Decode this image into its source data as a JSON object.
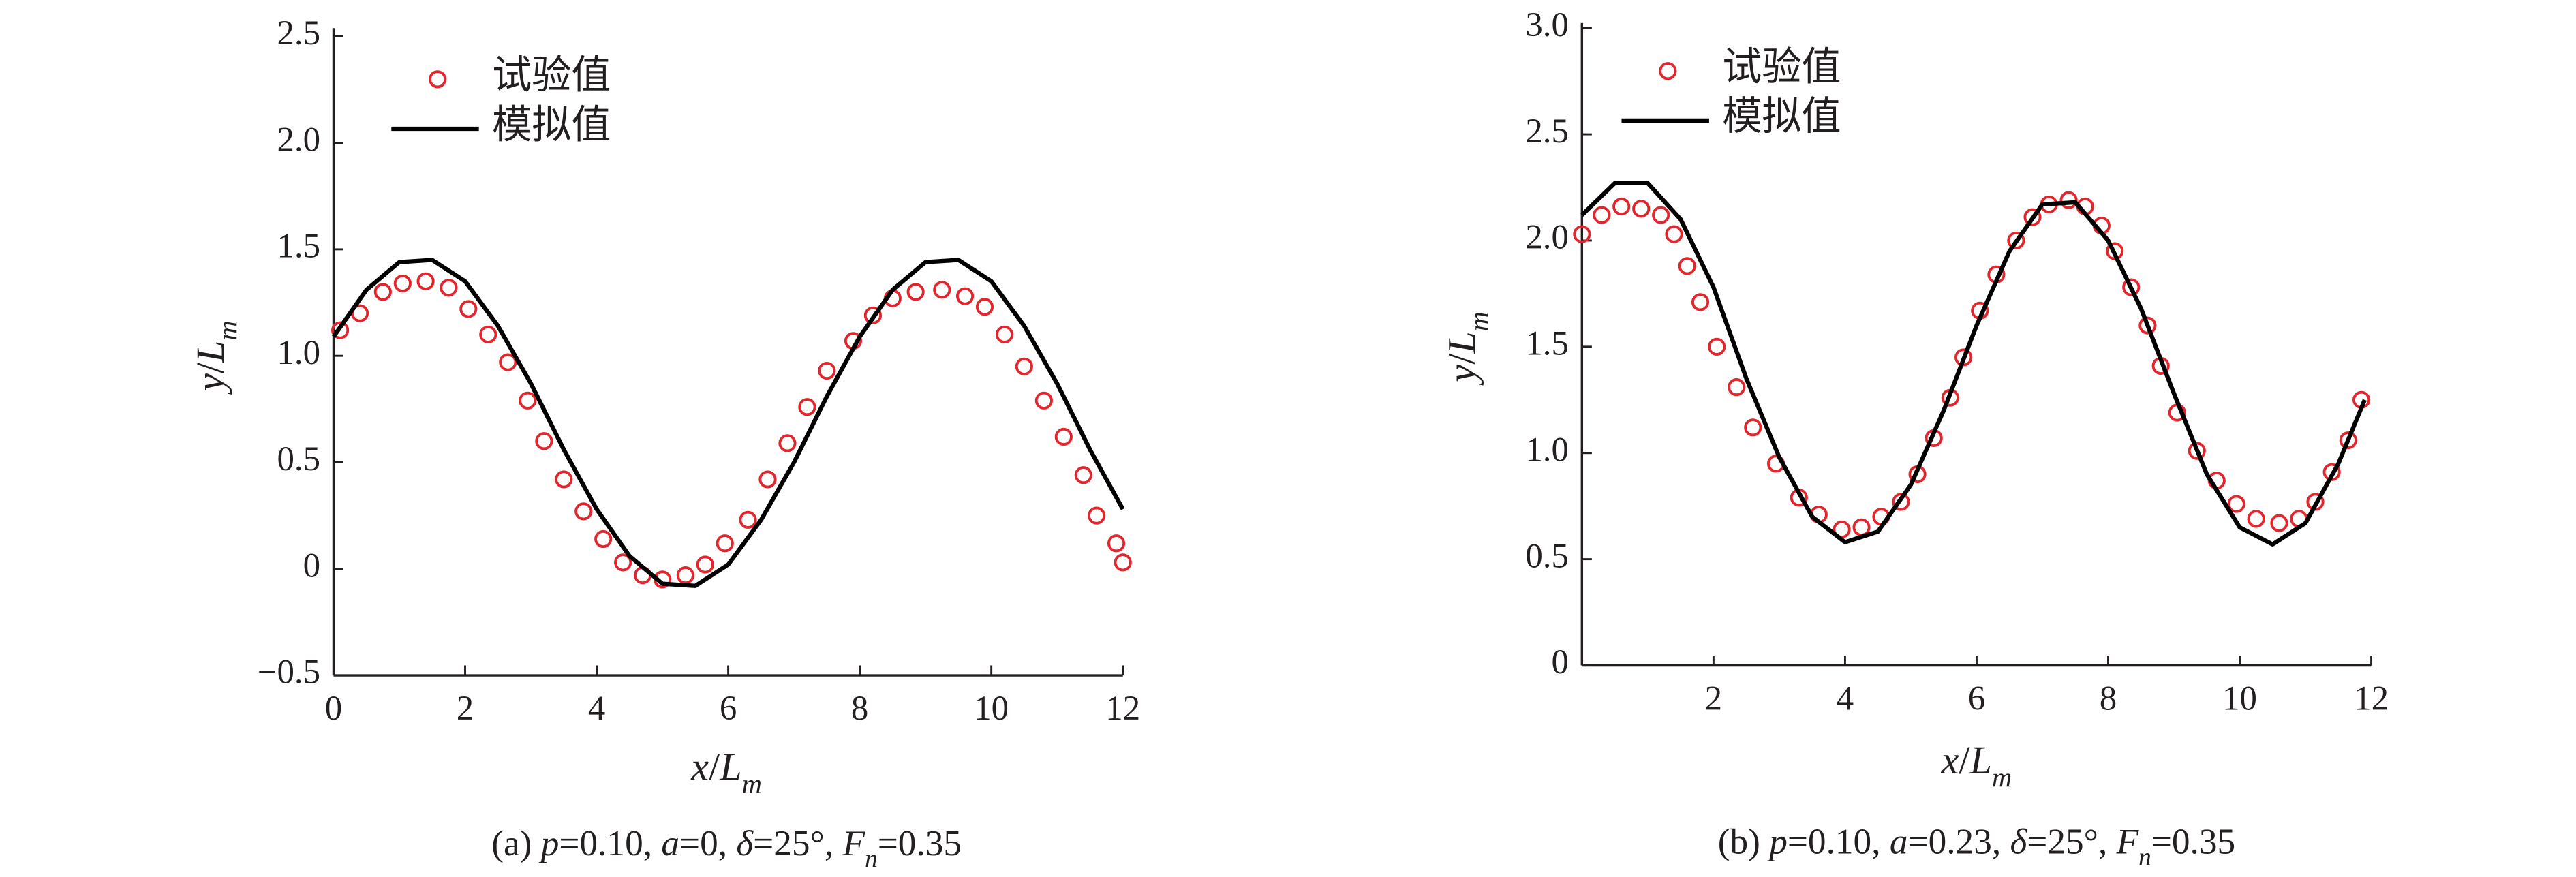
{
  "chart_data": [
    {
      "type": "line",
      "caption": [
        {
          "text": "(a) ",
          "style": "roman"
        },
        {
          "text": "p",
          "style": "italic"
        },
        {
          "text": "=0.10, ",
          "style": "roman"
        },
        {
          "text": "a",
          "style": "italic"
        },
        {
          "text": "=0, ",
          "style": "roman"
        },
        {
          "text": "δ",
          "style": "italic"
        },
        {
          "text": "=25°, ",
          "style": "roman"
        },
        {
          "text": "F",
          "style": "italic"
        },
        {
          "text": "n",
          "style": "italic-sub"
        },
        {
          "text": "=0.35",
          "style": "roman"
        }
      ],
      "xlabel": [
        {
          "text": "x",
          "style": "italic"
        },
        {
          "text": "/",
          "style": "roman"
        },
        {
          "text": "L",
          "style": "italic"
        },
        {
          "text": "m",
          "style": "italic-sub"
        }
      ],
      "ylabel": [
        {
          "text": "y",
          "style": "italic"
        },
        {
          "text": "/",
          "style": "roman"
        },
        {
          "text": "L",
          "style": "italic"
        },
        {
          "text": "m",
          "style": "italic-sub"
        }
      ],
      "xlim": [
        0,
        12
      ],
      "xticks": [
        0,
        2,
        4,
        6,
        8,
        10,
        12
      ],
      "ylim": [
        -0.5,
        2.5
      ],
      "yticks": [
        {
          "value": -0.5,
          "label": "−0.5"
        },
        0,
        0.5,
        {
          "value": 1,
          "label": "1.0"
        },
        1.5,
        {
          "value": 2,
          "label": "2.0"
        },
        2.5
      ],
      "legend": "upper left",
      "series": [
        {
          "name": "试验值",
          "style": "markers",
          "color": "#e3262d",
          "x": [
            0.1,
            0.4,
            0.75,
            1.05,
            1.4,
            1.75,
            2.05,
            2.35,
            2.65,
            2.95,
            3.2,
            3.5,
            3.8,
            4.1,
            4.4,
            4.7,
            5.0,
            5.35,
            5.65,
            5.95,
            6.3,
            6.6,
            6.9,
            7.2,
            7.5,
            7.9,
            8.2,
            8.5,
            8.85,
            9.25,
            9.6,
            9.9,
            10.2,
            10.5,
            10.8,
            11.1,
            11.4,
            11.6,
            11.9,
            12.0
          ],
          "values": [
            1.12,
            1.2,
            1.3,
            1.34,
            1.35,
            1.32,
            1.22,
            1.1,
            0.97,
            0.79,
            0.6,
            0.42,
            0.27,
            0.14,
            0.03,
            -0.03,
            -0.05,
            -0.03,
            0.02,
            0.12,
            0.23,
            0.42,
            0.59,
            0.76,
            0.93,
            1.07,
            1.19,
            1.27,
            1.3,
            1.31,
            1.28,
            1.23,
            1.1,
            0.95,
            0.79,
            0.62,
            0.44,
            0.25,
            0.12,
            0.03
          ]
        },
        {
          "name": "模拟值",
          "style": "line",
          "color": "#000000",
          "x": [
            0,
            0.5,
            1,
            1.5,
            2,
            2.5,
            3,
            3.5,
            4,
            4.5,
            5,
            5.5,
            6,
            6.5,
            7,
            7.5,
            8,
            8.5,
            9,
            9.5,
            10,
            10.5,
            11,
            11.5,
            12
          ],
          "values": [
            1.09,
            1.31,
            1.44,
            1.45,
            1.35,
            1.14,
            0.87,
            0.56,
            0.28,
            0.06,
            -0.07,
            -0.08,
            0.02,
            0.23,
            0.5,
            0.81,
            1.09,
            1.31,
            1.44,
            1.45,
            1.35,
            1.14,
            0.87,
            0.56,
            0.28
          ]
        }
      ]
    },
    {
      "type": "line",
      "caption": [
        {
          "text": "(b) ",
          "style": "roman"
        },
        {
          "text": "p",
          "style": "italic"
        },
        {
          "text": "=0.10, ",
          "style": "roman"
        },
        {
          "text": "a",
          "style": "italic"
        },
        {
          "text": "=0.23, ",
          "style": "roman"
        },
        {
          "text": "δ",
          "style": "italic"
        },
        {
          "text": "=25°, ",
          "style": "roman"
        },
        {
          "text": "F",
          "style": "italic"
        },
        {
          "text": "n",
          "style": "italic-sub"
        },
        {
          "text": "=0.35",
          "style": "roman"
        }
      ],
      "xlabel": [
        {
          "text": "x",
          "style": "italic"
        },
        {
          "text": "/",
          "style": "roman"
        },
        {
          "text": "L",
          "style": "italic"
        },
        {
          "text": "m",
          "style": "italic-sub"
        }
      ],
      "ylabel": [
        {
          "text": "y",
          "style": "italic"
        },
        {
          "text": "/",
          "style": "roman"
        },
        {
          "text": "L",
          "style": "italic"
        },
        {
          "text": "m",
          "style": "italic-sub"
        }
      ],
      "xlim": [
        0,
        12
      ],
      "xticks": [
        2,
        4,
        6,
        8,
        10,
        12
      ],
      "ylim": [
        0,
        3
      ],
      "yticks": [
        0,
        0.5,
        {
          "value": 1,
          "label": "1.0"
        },
        1.5,
        {
          "value": 2,
          "label": "2.0"
        },
        2.5,
        {
          "value": 3,
          "label": "3.0"
        }
      ],
      "legend": "upper left",
      "series": [
        {
          "name": "试验值",
          "style": "markers",
          "color": "#e3262d",
          "x": [
            0,
            0.3,
            0.6,
            0.9,
            1.2,
            1.4,
            1.6,
            1.8,
            2.05,
            2.35,
            2.6,
            2.95,
            3.3,
            3.6,
            3.95,
            4.25,
            4.55,
            4.85,
            5.1,
            5.35,
            5.6,
            5.8,
            6.05,
            6.3,
            6.6,
            6.85,
            7.1,
            7.4,
            7.65,
            7.9,
            8.1,
            8.35,
            8.6,
            8.8,
            9.05,
            9.35,
            9.65,
            9.95,
            10.25,
            10.6,
            10.9,
            11.15,
            11.4,
            11.65,
            11.85
          ],
          "values": [
            2.03,
            2.12,
            2.16,
            2.15,
            2.12,
            2.03,
            1.88,
            1.71,
            1.5,
            1.31,
            1.12,
            0.95,
            0.79,
            0.71,
            0.64,
            0.65,
            0.7,
            0.77,
            0.9,
            1.07,
            1.26,
            1.45,
            1.67,
            1.84,
            2.0,
            2.11,
            2.17,
            2.19,
            2.16,
            2.07,
            1.95,
            1.78,
            1.6,
            1.41,
            1.19,
            1.01,
            0.87,
            0.76,
            0.69,
            0.67,
            0.69,
            0.77,
            0.91,
            1.06,
            1.25
          ]
        },
        {
          "name": "模拟值",
          "style": "line",
          "color": "#000000",
          "x": [
            0,
            0.5,
            1,
            1.5,
            2,
            2.5,
            3,
            3.5,
            4,
            4.5,
            5,
            5.5,
            6,
            6.5,
            7,
            7.5,
            8,
            8.5,
            9,
            9.5,
            10,
            10.5,
            11,
            11.5,
            11.9
          ],
          "values": [
            2.12,
            2.27,
            2.27,
            2.1,
            1.78,
            1.35,
            0.98,
            0.7,
            0.58,
            0.63,
            0.85,
            1.2,
            1.6,
            1.95,
            2.17,
            2.18,
            2.0,
            1.68,
            1.28,
            0.9,
            0.65,
            0.57,
            0.67,
            0.95,
            1.25
          ]
        }
      ]
    }
  ]
}
